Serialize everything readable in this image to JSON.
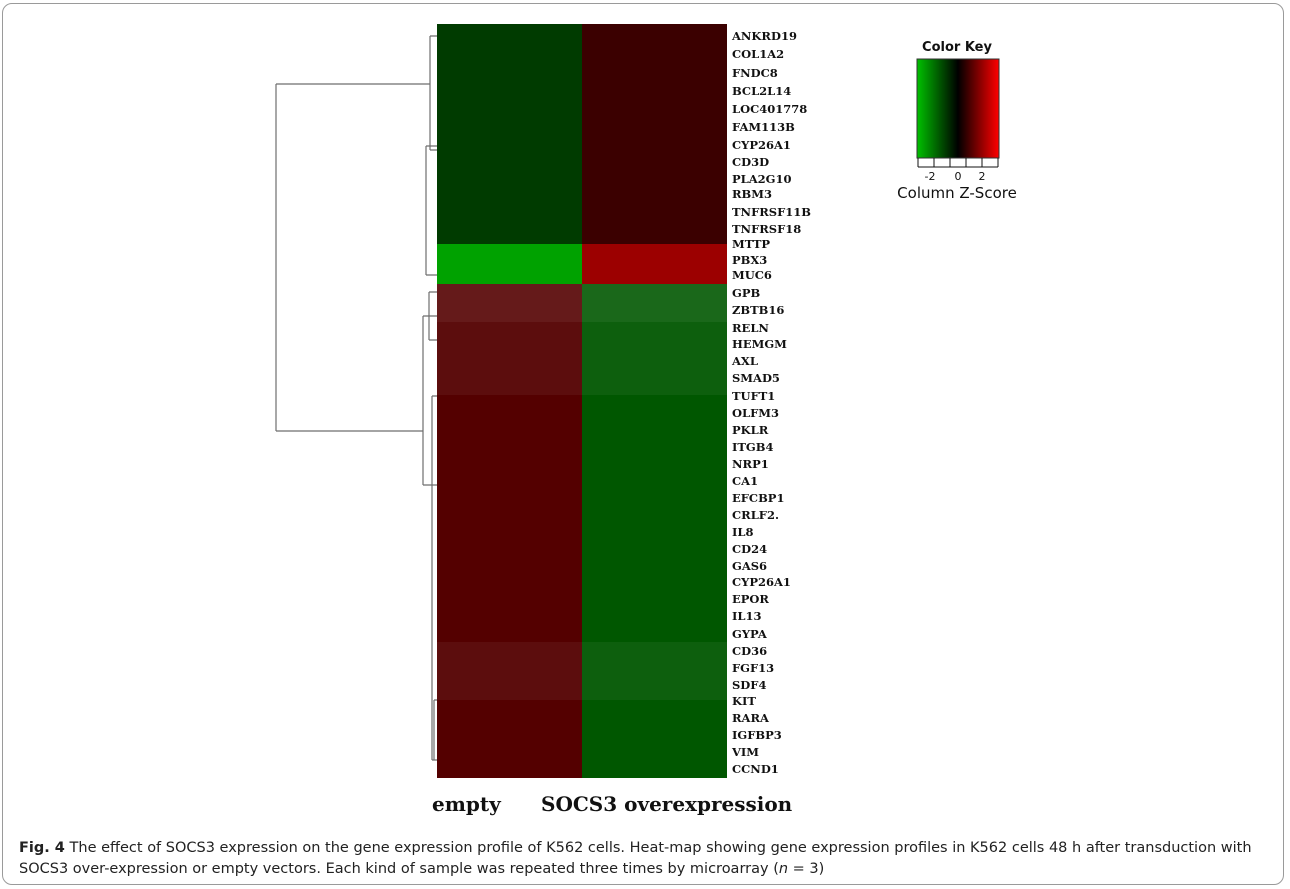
{
  "chart_data": {
    "type": "heatmap",
    "columns": [
      "empty",
      "SOCS3 overexpression"
    ],
    "rows": [
      "ANKRD19",
      "COL1A2",
      "FNDC8",
      "BCL2L14",
      "LOC401778",
      "FAM113B",
      "CYP26A1",
      "CD3D",
      "PLA2G10",
      "RBM3",
      "TNFRSF11B",
      "TNFRSF18",
      "MTTP",
      "PBX3",
      "MUC6",
      "GPB",
      "ZBTB16",
      "RELN",
      "HEMGM",
      "AXL",
      "SMAD5",
      "TUFT1",
      "OLFM3",
      "PKLR",
      "ITGB4",
      "NRP1",
      "CA1",
      "EFCBP1",
      "CRLF2.",
      "IL8",
      "CD24",
      "GAS6",
      "CYP26A1",
      "EPOR",
      "IL13",
      "GYPA",
      "CD36",
      "FGF13",
      "SDF4",
      "KIT",
      "RARA",
      "IGFBP3",
      "VIM",
      "CCND1"
    ],
    "blocks": [
      {
        "group": "top",
        "values": [
          -1,
          1
        ]
      },
      {
        "group": "middle",
        "values": [
          -2,
          2
        ]
      },
      {
        "group": "bottom",
        "values": [
          1,
          -1
        ]
      }
    ],
    "color_key": {
      "title": "Color Key",
      "ticks": [
        "-2",
        "0",
        "2"
      ],
      "label": "Column Z-Score",
      "colors": [
        "#00c000",
        "#000000",
        "#ff0000"
      ]
    }
  },
  "colors": {
    "dark_green": "#003b00",
    "bright_green": "#00a200",
    "dark_red": "#3b0000",
    "bright_red": "#9c0000",
    "medium_red": "#540000",
    "medium_green": "#005700"
  },
  "caption": {
    "fig_label": "Fig. 4",
    "text_before_n": " The effect of SOCS3 expression on the gene expression profile of K562 cells. Heat-map showing gene expression profiles in K562 cells 48 h after transduction with SOCS3 over-expression or empty vectors. Each kind of sample was repeated three times by microarray (",
    "n_symbol": "n",
    "text_after_n": " = 3)"
  }
}
